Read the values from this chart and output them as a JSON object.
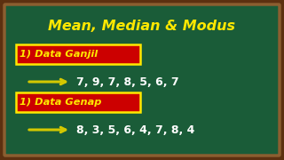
{
  "title": "Mean, Median & Modus",
  "title_color": "#FFE800",
  "bg_color": "#1A5C38",
  "border_color": "#5C3010",
  "border_inner_color": "#8B5E30",
  "label1": "1) Data Ganjil",
  "data1": "7, 9, 7, 8, 5, 6, 7",
  "label2": "1) Data Genap",
  "data2": "8, 3, 5, 6, 4, 7, 8, 4",
  "label_bg": "#CC0000",
  "label_border": "#FFE800",
  "label_text_color": "#FFE800",
  "data_text_color": "#FFFFFF",
  "arrow_color": "#D4C800",
  "title_fontsize": 11.5,
  "label_fontsize": 8.2,
  "data_fontsize": 9.0
}
